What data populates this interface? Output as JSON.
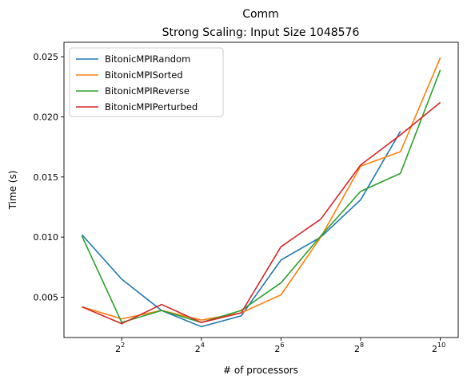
{
  "chart_data": {
    "type": "line",
    "title_line1": "Comm",
    "title_line2": "Strong Scaling: Input Size 1048576",
    "xlabel": "# of processors",
    "ylabel": "Time (s)",
    "x_scale": "log2",
    "x": [
      2,
      4,
      8,
      16,
      32,
      64,
      128,
      256,
      512,
      1024
    ],
    "x_ticks": [
      {
        "value": 4,
        "base": "2",
        "exp": "2"
      },
      {
        "value": 16,
        "base": "2",
        "exp": "4"
      },
      {
        "value": 64,
        "base": "2",
        "exp": "6"
      },
      {
        "value": 256,
        "base": "2",
        "exp": "8"
      },
      {
        "value": 1024,
        "base": "2",
        "exp": "10"
      }
    ],
    "y_ticks": [
      {
        "value": 0.005,
        "label": "0.005"
      },
      {
        "value": 0.01,
        "label": "0.010"
      },
      {
        "value": 0.015,
        "label": "0.015"
      },
      {
        "value": 0.02,
        "label": "0.020"
      },
      {
        "value": 0.025,
        "label": "0.025"
      }
    ],
    "xlim_log2": [
      0.55,
      10.45
    ],
    "ylim": [
      0.00165,
      0.0262
    ],
    "grid": false,
    "legend_position": "top-left",
    "series": [
      {
        "name": "BitonicMPIRandom",
        "color": "#1f77b4",
        "values": [
          0.0102,
          0.0065,
          0.0039,
          0.00255,
          0.00345,
          0.0081,
          0.01,
          0.0131,
          0.0188,
          null
        ]
      },
      {
        "name": "BitonicMPISorted",
        "color": "#ff7f0e",
        "values": [
          0.0042,
          0.0032,
          0.0039,
          0.0031,
          0.0037,
          0.0052,
          0.01,
          0.0159,
          0.0171,
          0.0249
        ]
      },
      {
        "name": "BitonicMPIReverse",
        "color": "#2ca02c",
        "values": [
          0.0101,
          0.0029,
          0.0039,
          0.0029,
          0.0039,
          0.0062,
          0.0101,
          0.0138,
          0.0153,
          0.0239
        ]
      },
      {
        "name": "BitonicMPIPerturbed",
        "color": "#d62728",
        "values": [
          0.0042,
          0.0028,
          0.0044,
          0.0029,
          0.0037,
          0.0092,
          0.0115,
          0.016,
          0.0185,
          0.0212
        ]
      }
    ]
  }
}
